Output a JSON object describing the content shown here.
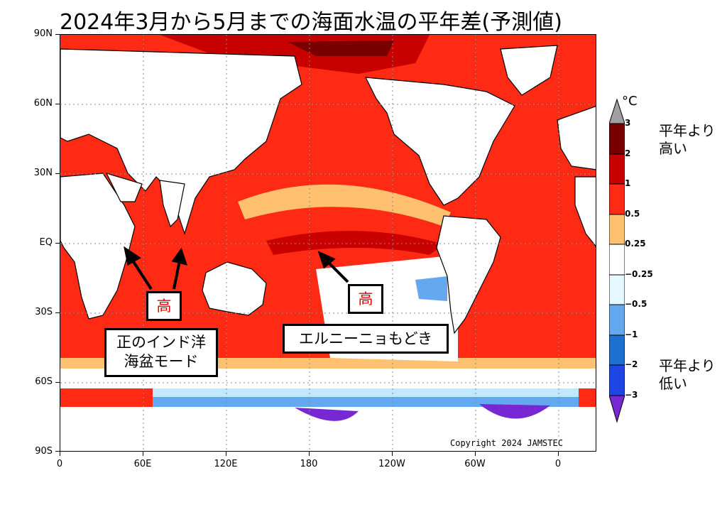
{
  "title": "2024年3月から5月までの海面水温の平年差(予測値)",
  "map": {
    "lat_labels": [
      "90N",
      "60N",
      "30N",
      "EQ",
      "30S",
      "60S",
      "90S"
    ],
    "lon_labels": [
      "0",
      "60E",
      "120E",
      "180",
      "120W",
      "60W",
      "0"
    ],
    "copyright": "Copyright 2024 JAMSTEC"
  },
  "annotations": {
    "iod_high": "高",
    "nino_high": "高",
    "iod_label_line1": "正のインド洋",
    "iod_label_line2": "海盆モード",
    "nino_label": "エルニーニョもどき"
  },
  "legend": {
    "unit": "°C",
    "ticks": [
      "3",
      "2",
      "1",
      "0.5",
      "0.25",
      "−0.25",
      "−0.5",
      "−1",
      "−2",
      "−3"
    ],
    "high_line1": "平年より",
    "high_line2": "高い",
    "low_line1": "平年より",
    "low_line2": "低い",
    "colors": [
      "#a0a0a0",
      "#7a0000",
      "#c80000",
      "#ff2a14",
      "#ffc070",
      "#ffffff",
      "#e6f8ff",
      "#64a8f0",
      "#1e70d0",
      "#1e46e6",
      "#7828d2"
    ]
  }
}
